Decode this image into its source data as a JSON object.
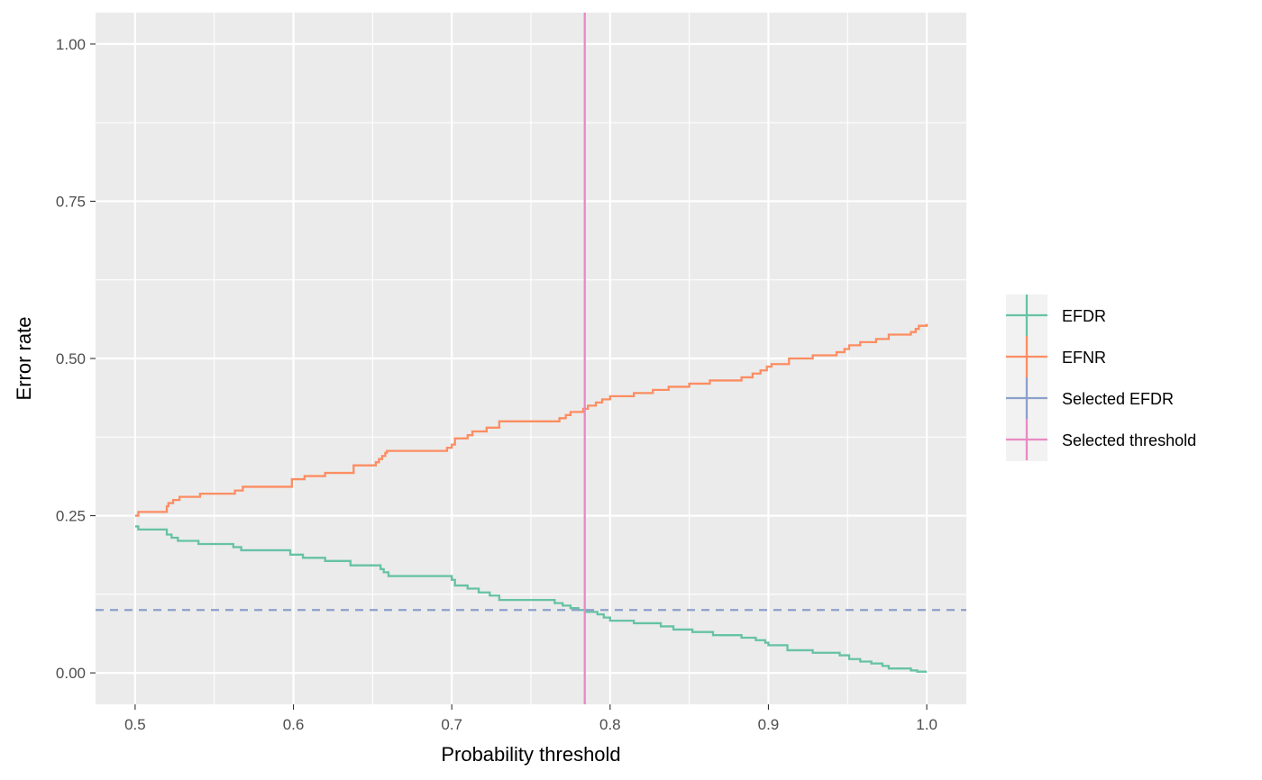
{
  "chart_data": {
    "type": "line",
    "xlabel": "Probability threshold",
    "ylabel": "Error rate",
    "xlim": [
      0.475,
      1.025
    ],
    "ylim": [
      -0.05,
      1.05
    ],
    "x_ticks": [
      0.5,
      0.6,
      0.7,
      0.8,
      0.9,
      1.0
    ],
    "x_tick_labels": [
      "0.5",
      "0.6",
      "0.7",
      "0.8",
      "0.9",
      "1.0"
    ],
    "y_ticks": [
      0.0,
      0.25,
      0.5,
      0.75,
      1.0
    ],
    "y_tick_labels": [
      "0.00",
      "0.25",
      "0.50",
      "0.75",
      "1.00"
    ],
    "grid": true,
    "legend_position": "right",
    "series": [
      {
        "name": "EFDR",
        "color": "#66c2a5",
        "style": "step",
        "points": [
          [
            0.5,
            0.233
          ],
          [
            0.502,
            0.228
          ],
          [
            0.52,
            0.22
          ],
          [
            0.523,
            0.215
          ],
          [
            0.527,
            0.21
          ],
          [
            0.54,
            0.205
          ],
          [
            0.562,
            0.2
          ],
          [
            0.567,
            0.195
          ],
          [
            0.598,
            0.188
          ],
          [
            0.606,
            0.183
          ],
          [
            0.62,
            0.178
          ],
          [
            0.636,
            0.171
          ],
          [
            0.655,
            0.165
          ],
          [
            0.657,
            0.16
          ],
          [
            0.66,
            0.154
          ],
          [
            0.7,
            0.148
          ],
          [
            0.702,
            0.139
          ],
          [
            0.71,
            0.134
          ],
          [
            0.717,
            0.128
          ],
          [
            0.724,
            0.123
          ],
          [
            0.73,
            0.116
          ],
          [
            0.765,
            0.111
          ],
          [
            0.77,
            0.107
          ],
          [
            0.775,
            0.103
          ],
          [
            0.78,
            0.1
          ],
          [
            0.785,
            0.097
          ],
          [
            0.792,
            0.093
          ],
          [
            0.796,
            0.088
          ],
          [
            0.8,
            0.083
          ],
          [
            0.815,
            0.079
          ],
          [
            0.832,
            0.074
          ],
          [
            0.84,
            0.069
          ],
          [
            0.852,
            0.065
          ],
          [
            0.865,
            0.06
          ],
          [
            0.883,
            0.056
          ],
          [
            0.892,
            0.052
          ],
          [
            0.898,
            0.048
          ],
          [
            0.9,
            0.044
          ],
          [
            0.912,
            0.036
          ],
          [
            0.928,
            0.032
          ],
          [
            0.945,
            0.028
          ],
          [
            0.951,
            0.022
          ],
          [
            0.958,
            0.018
          ],
          [
            0.965,
            0.015
          ],
          [
            0.972,
            0.011
          ],
          [
            0.976,
            0.007
          ],
          [
            0.99,
            0.004
          ],
          [
            0.994,
            0.002
          ],
          [
            1.0,
            0.002
          ]
        ]
      },
      {
        "name": "EFNR",
        "color": "#fc8d62",
        "style": "step",
        "points": [
          [
            0.5,
            0.25
          ],
          [
            0.502,
            0.256
          ],
          [
            0.52,
            0.265
          ],
          [
            0.521,
            0.27
          ],
          [
            0.524,
            0.275
          ],
          [
            0.528,
            0.28
          ],
          [
            0.541,
            0.285
          ],
          [
            0.563,
            0.29
          ],
          [
            0.568,
            0.296
          ],
          [
            0.599,
            0.308
          ],
          [
            0.607,
            0.313
          ],
          [
            0.62,
            0.318
          ],
          [
            0.638,
            0.33
          ],
          [
            0.652,
            0.335
          ],
          [
            0.654,
            0.34
          ],
          [
            0.656,
            0.345
          ],
          [
            0.658,
            0.35
          ],
          [
            0.659,
            0.353
          ],
          [
            0.697,
            0.358
          ],
          [
            0.7,
            0.363
          ],
          [
            0.702,
            0.373
          ],
          [
            0.71,
            0.378
          ],
          [
            0.713,
            0.384
          ],
          [
            0.722,
            0.39
          ],
          [
            0.73,
            0.4
          ],
          [
            0.768,
            0.405
          ],
          [
            0.772,
            0.41
          ],
          [
            0.775,
            0.415
          ],
          [
            0.783,
            0.42
          ],
          [
            0.786,
            0.425
          ],
          [
            0.791,
            0.43
          ],
          [
            0.795,
            0.435
          ],
          [
            0.8,
            0.44
          ],
          [
            0.815,
            0.445
          ],
          [
            0.827,
            0.45
          ],
          [
            0.837,
            0.455
          ],
          [
            0.85,
            0.46
          ],
          [
            0.863,
            0.465
          ],
          [
            0.883,
            0.47
          ],
          [
            0.89,
            0.476
          ],
          [
            0.895,
            0.481
          ],
          [
            0.899,
            0.487
          ],
          [
            0.902,
            0.491
          ],
          [
            0.913,
            0.5
          ],
          [
            0.928,
            0.505
          ],
          [
            0.943,
            0.51
          ],
          [
            0.948,
            0.515
          ],
          [
            0.951,
            0.521
          ],
          [
            0.958,
            0.526
          ],
          [
            0.968,
            0.531
          ],
          [
            0.976,
            0.538
          ],
          [
            0.99,
            0.542
          ],
          [
            0.993,
            0.547
          ],
          [
            0.995,
            0.552
          ],
          [
            1.0,
            0.555
          ]
        ]
      },
      {
        "name": "Selected EFDR",
        "color": "#8da0cb",
        "style": "hline-dashed",
        "y": 0.1
      },
      {
        "name": "Selected threshold",
        "color": "#e78ac3",
        "style": "vline",
        "x": 0.784
      }
    ]
  }
}
